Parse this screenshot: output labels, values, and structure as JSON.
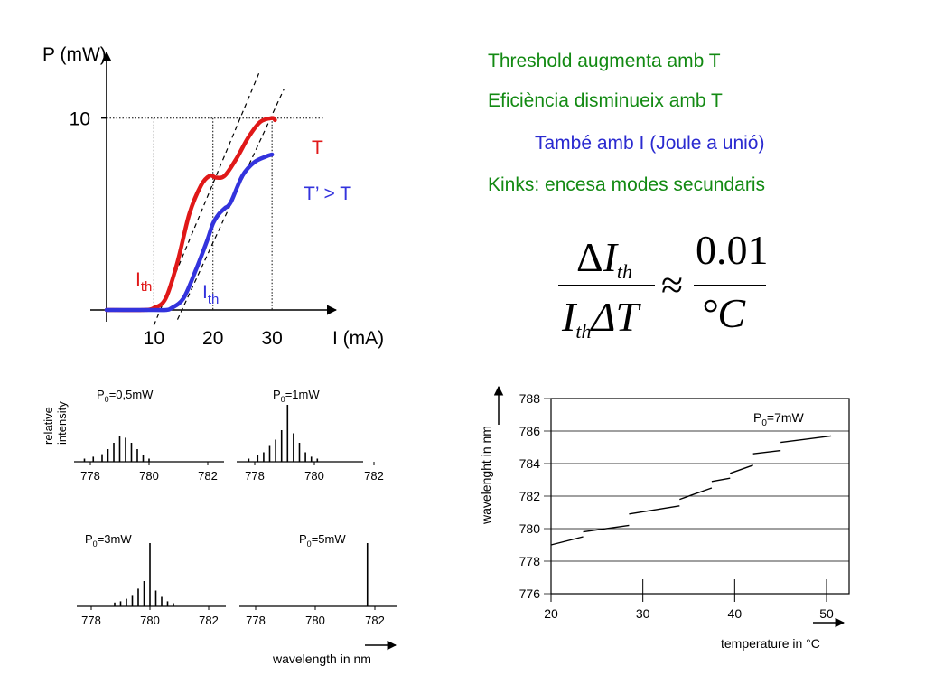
{
  "colors": {
    "cold": "#e01818",
    "hot": "#3333dd",
    "note_green": "#138a13",
    "note_blue": "#2a2ad0",
    "axis": "#000000"
  },
  "notes": {
    "line1": "Threshold augmenta amb T",
    "line2": "Eficiència disminueix amb T",
    "line3": "També amb I (Joule a unió)",
    "line4": "Kinks: encesa modes secundaris"
  },
  "formula": {
    "num_delta": "Δ",
    "num_var": "I",
    "num_sub": "th",
    "den_var": "I",
    "den_sub": "th",
    "den_delta": "ΔT",
    "approx": "≈",
    "rhs_num": "0.01",
    "rhs_den": "°C"
  },
  "chart_data": [
    {
      "type": "line",
      "name": "PI curve",
      "ylabel": "P (mW)",
      "xlabel": "I (mA)",
      "xticks": [
        "10",
        "20",
        "30"
      ],
      "yticks": [
        "10"
      ],
      "xlim": [
        2,
        39
      ],
      "ylim": [
        0,
        13
      ],
      "curve_labels": {
        "cold": "T",
        "hot": "T’ > T",
        "ith": "I",
        "ith_sub": "th"
      },
      "series": [
        {
          "id": "cold",
          "x": [
            2,
            8,
            10,
            12,
            14,
            16,
            18,
            19.5,
            20.5,
            22,
            24,
            26,
            28,
            30,
            30.5
          ],
          "y": [
            0,
            0,
            0.1,
            0.6,
            2.5,
            5.0,
            6.5,
            7.0,
            6.9,
            7.0,
            7.9,
            9.0,
            9.8,
            10.0,
            9.9
          ]
        },
        {
          "id": "hot",
          "x": [
            2,
            10,
            12,
            13,
            15,
            17,
            19,
            20,
            21,
            22,
            23,
            25,
            27,
            29,
            30
          ],
          "y": [
            0,
            0,
            0,
            0.1,
            0.6,
            2.0,
            3.6,
            4.5,
            5.0,
            5.3,
            5.6,
            7.0,
            7.7,
            8.0,
            8.1
          ]
        }
      ],
      "threshold_lines": [
        {
          "x": [
            10,
            28
          ],
          "y": [
            -0.8,
            12.5
          ]
        },
        {
          "x": [
            14,
            32
          ],
          "y": [
            -0.5,
            11.5
          ]
        }
      ]
    },
    {
      "type": "bar",
      "name": "spectra",
      "xlabel": "wavelength in nm",
      "ylabel_lines": [
        "relative",
        "intensity"
      ],
      "xticks": [
        "778",
        "780",
        "782"
      ],
      "xlim": [
        777,
        782.6
      ],
      "panels": [
        {
          "label": "=0,5mW",
          "wl": [
            777.8,
            778.1,
            778.4,
            778.6,
            778.8,
            779.0,
            779.2,
            779.4,
            779.6,
            779.8,
            780.0
          ],
          "h": [
            0.05,
            0.08,
            0.12,
            0.2,
            0.3,
            0.4,
            0.38,
            0.3,
            0.2,
            0.1,
            0.05
          ]
        },
        {
          "label": "=1mW",
          "wl": [
            777.8,
            778.1,
            778.3,
            778.5,
            778.7,
            778.9,
            779.1,
            779.3,
            779.5,
            779.7,
            779.9,
            780.1
          ],
          "h": [
            0.05,
            0.1,
            0.15,
            0.25,
            0.35,
            0.5,
            0.9,
            0.45,
            0.3,
            0.15,
            0.08,
            0.05
          ]
        },
        {
          "label": "=3mW",
          "wl": [
            778.8,
            779.0,
            779.2,
            779.4,
            779.6,
            779.8,
            780.0,
            780.2,
            780.4,
            780.6,
            780.8
          ],
          "h": [
            0.06,
            0.08,
            0.12,
            0.18,
            0.28,
            0.4,
            1.0,
            0.25,
            0.15,
            0.08,
            0.05
          ]
        },
        {
          "label": "=5mW",
          "wl": [
            781.75
          ],
          "h": [
            1.0
          ]
        }
      ]
    },
    {
      "type": "line",
      "name": "mode hopping",
      "xlabel": "temperature in °C",
      "ylabel": "wavelenght in nm",
      "annotation": "=7mW",
      "xticks": [
        "20",
        "30",
        "40",
        "50"
      ],
      "yticks": [
        "776",
        "778",
        "780",
        "782",
        "784",
        "786",
        "788"
      ],
      "xlim": [
        20,
        52
      ],
      "ylim": [
        776,
        788
      ],
      "segments": [
        {
          "x": [
            20,
            23.5
          ],
          "y": [
            779.0,
            779.5
          ]
        },
        {
          "x": [
            23.5,
            28.5
          ],
          "y": [
            779.8,
            780.2
          ]
        },
        {
          "x": [
            28.5,
            34
          ],
          "y": [
            780.9,
            781.4
          ]
        },
        {
          "x": [
            34,
            37.5
          ],
          "y": [
            781.8,
            782.5
          ]
        },
        {
          "x": [
            37.5,
            39.5
          ],
          "y": [
            782.9,
            783.1
          ]
        },
        {
          "x": [
            39.5,
            42
          ],
          "y": [
            783.4,
            783.9
          ]
        },
        {
          "x": [
            42,
            45
          ],
          "y": [
            784.6,
            784.8
          ]
        },
        {
          "x": [
            45,
            50.5
          ],
          "y": [
            785.3,
            785.7
          ]
        }
      ]
    }
  ]
}
